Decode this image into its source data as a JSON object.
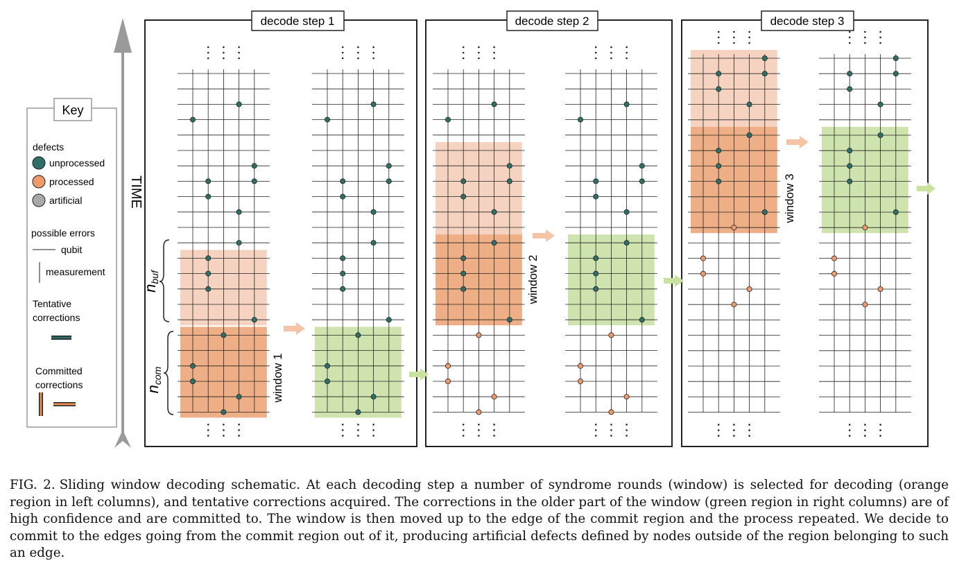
{
  "time_label": "TIME",
  "key": {
    "title": "Key",
    "defects_heading": "defects",
    "defects": [
      {
        "label": "unprocessed",
        "color": "#2f6f68"
      },
      {
        "label": "processed",
        "color": "#ee9a6c"
      },
      {
        "label": "artificial",
        "color": "#a9a9a9"
      }
    ],
    "errors_heading": "possible errors",
    "qubit_label": "qubit",
    "measurement_label": "measurement",
    "tentative_label_1": "Tentative",
    "tentative_label_2": "corrections",
    "committed_label_1": "Committed",
    "committed_label_2": "corrections"
  },
  "steps": [
    {
      "title": "decode step 1",
      "window_label": "window 1"
    },
    {
      "title": "decode step 2",
      "window_label": "window 2"
    },
    {
      "title": "decode step 3",
      "window_label": "window 3"
    }
  ],
  "n_buf_label": "n",
  "n_buf_sub": "buf",
  "n_com_label": "n",
  "n_com_sub": "com",
  "colors": {
    "unprocessed": "#2f6f68",
    "processed": "#ee9a6c",
    "artificial": "#a9a9a9",
    "tentative": "#245f59",
    "committed": "#ea8d55",
    "buffer_fill": "#f6d3c0",
    "window_fill": "#eeae86",
    "commit_fill": "#cfe3ae",
    "arrow_orange": "#f5c4a6",
    "arrow_green": "#c9e39f"
  },
  "caption": {
    "label": "FIG. 2.",
    "text": "Sliding window decoding schematic. At each decoding step a number of syndrome rounds (window) is selected for decoding (orange region in left columns), and tentative corrections acquired. The corrections in the older part of the window (green region in right columns) are of high confidence and are committed to. The window is then moved up to the edge of the commit region and the process repeated. We decide to commit to the edges going from the commit region out of it, producing artificial defects defined by nodes outside of the region belonging to such an edge."
  }
}
